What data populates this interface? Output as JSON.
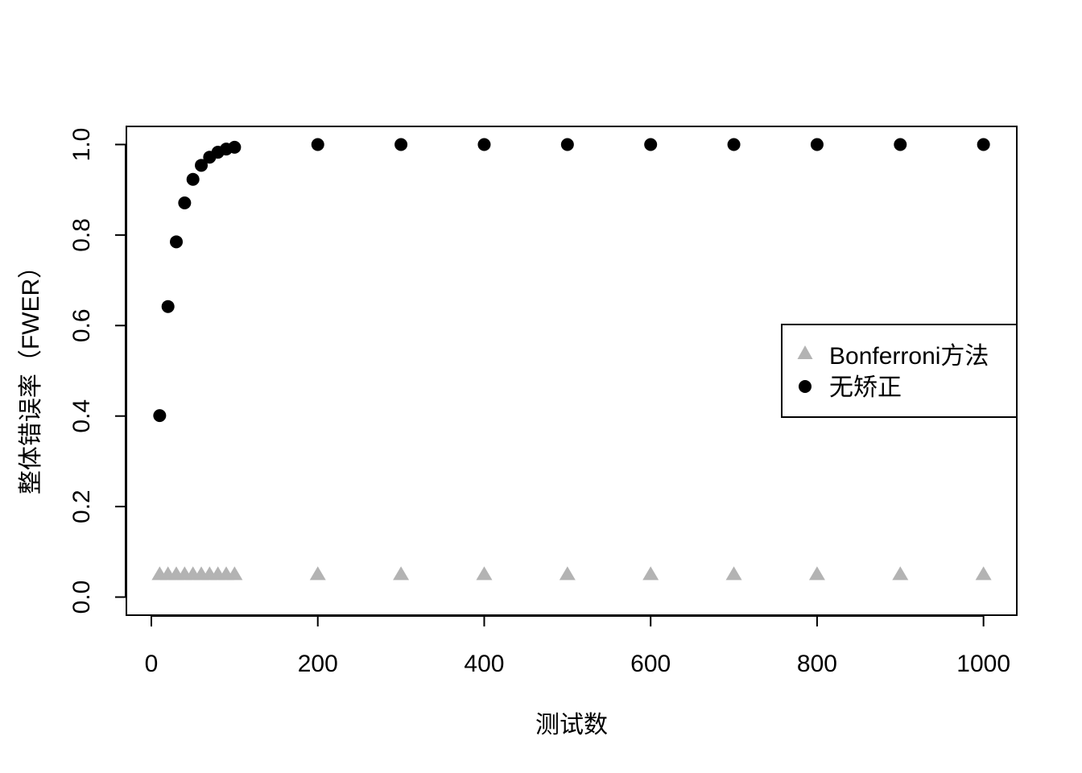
{
  "chart_data": {
    "type": "scatter",
    "title": "",
    "xlabel": "测试数",
    "ylabel": "整体错误率（FWER）",
    "xlim": [
      -30,
      1040
    ],
    "ylim": [
      -0.04,
      1.04
    ],
    "x_ticks": [
      0,
      200,
      400,
      600,
      800,
      1000
    ],
    "y_ticks": [
      0.0,
      0.2,
      0.4,
      0.6,
      0.8,
      1.0
    ],
    "x_tick_labels": [
      "0",
      "200",
      "400",
      "600",
      "800",
      "1000"
    ],
    "y_tick_labels": [
      "0.0",
      "0.2",
      "0.4",
      "0.6",
      "0.8",
      "1.0"
    ],
    "grid": false,
    "legend_position": "right",
    "x": [
      10,
      20,
      30,
      40,
      50,
      60,
      70,
      80,
      90,
      100,
      200,
      300,
      400,
      500,
      600,
      700,
      800,
      900,
      1000
    ],
    "series": [
      {
        "name": "Bonferroni方法",
        "marker": "triangle",
        "color": "#b3b3b3",
        "values": [
          0.05,
          0.05,
          0.05,
          0.05,
          0.05,
          0.05,
          0.05,
          0.05,
          0.05,
          0.05,
          0.05,
          0.05,
          0.05,
          0.05,
          0.05,
          0.05,
          0.05,
          0.05,
          0.05
        ]
      },
      {
        "name": "无矫正",
        "marker": "circle",
        "color": "#000000",
        "values": [
          0.401,
          0.642,
          0.785,
          0.871,
          0.923,
          0.954,
          0.972,
          0.983,
          0.99,
          0.994,
          1.0,
          1.0,
          1.0,
          1.0,
          1.0,
          1.0,
          1.0,
          1.0,
          1.0
        ]
      }
    ]
  }
}
